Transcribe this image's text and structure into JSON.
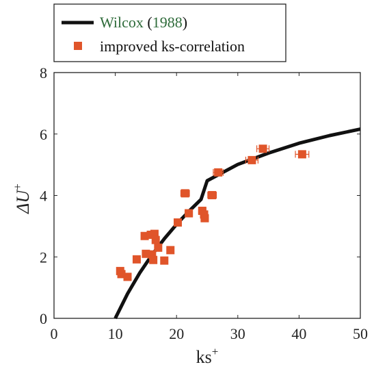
{
  "chart_data": {
    "type": "scatter",
    "title": "",
    "xlabel": "ks",
    "xlabel_sup": "+",
    "ylabel_main": "ΔU",
    "ylabel_sup": "+",
    "xlim": [
      0,
      50
    ],
    "ylim": [
      0,
      8
    ],
    "x_ticks": [
      "0",
      "10",
      "20",
      "30",
      "40",
      "50"
    ],
    "y_ticks": [
      "0",
      "2",
      "4",
      "6",
      "8"
    ],
    "grid": false,
    "legend_position": "top-left, above plot",
    "series": [
      {
        "name": "Wilcox (1988)",
        "name_parts": {
          "author": "Wilcox",
          "year": "1988"
        },
        "author_color": "#2e6b3a",
        "type": "line",
        "color": "#111111",
        "x": [
          10,
          12,
          14,
          16,
          18,
          20,
          22,
          24,
          25,
          30,
          35,
          40,
          45,
          50
        ],
        "y": [
          0.0,
          0.8,
          1.48,
          2.07,
          2.59,
          3.06,
          3.48,
          3.87,
          4.48,
          5.01,
          5.38,
          5.7,
          5.95,
          6.16
        ]
      },
      {
        "name": "improved ks-correlation",
        "type": "scatter",
        "marker": "square",
        "color": "#e0552a",
        "error_bars": "horizontal",
        "points": [
          {
            "x": 10.8,
            "y": 1.54,
            "xerr": 0.4
          },
          {
            "x": 11.0,
            "y": 1.44,
            "xerr": 0.4
          },
          {
            "x": 12.0,
            "y": 1.35,
            "xerr": 0.4
          },
          {
            "x": 13.5,
            "y": 1.92,
            "xerr": 0.4
          },
          {
            "x": 14.8,
            "y": 2.68,
            "xerr": 0.5
          },
          {
            "x": 15.0,
            "y": 2.1,
            "xerr": 0.5
          },
          {
            "x": 15.8,
            "y": 2.72,
            "xerr": 0.5
          },
          {
            "x": 16.0,
            "y": 2.08,
            "xerr": 0.5
          },
          {
            "x": 16.2,
            "y": 1.9,
            "xerr": 0.5
          },
          {
            "x": 16.4,
            "y": 2.75,
            "xerr": 0.5
          },
          {
            "x": 16.6,
            "y": 2.55,
            "xerr": 0.5
          },
          {
            "x": 17.0,
            "y": 2.3,
            "xerr": 0.5
          },
          {
            "x": 18.0,
            "y": 1.88,
            "xerr": 0.5
          },
          {
            "x": 19.0,
            "y": 2.22,
            "xerr": 0.5
          },
          {
            "x": 20.2,
            "y": 3.12,
            "xerr": 0.6
          },
          {
            "x": 21.4,
            "y": 4.07,
            "xerr": 0.7
          },
          {
            "x": 22.0,
            "y": 3.42,
            "xerr": 0.6
          },
          {
            "x": 24.2,
            "y": 3.5,
            "xerr": 0.6
          },
          {
            "x": 24.5,
            "y": 3.38,
            "xerr": 0.6
          },
          {
            "x": 24.6,
            "y": 3.26,
            "xerr": 0.6
          },
          {
            "x": 25.8,
            "y": 4.01,
            "xerr": 0.7
          },
          {
            "x": 26.8,
            "y": 4.75,
            "xerr": 0.8
          },
          {
            "x": 32.3,
            "y": 5.15,
            "xerr": 1.0
          },
          {
            "x": 34.1,
            "y": 5.52,
            "xerr": 1.0
          },
          {
            "x": 40.5,
            "y": 5.34,
            "xerr": 1.1
          }
        ]
      }
    ]
  }
}
